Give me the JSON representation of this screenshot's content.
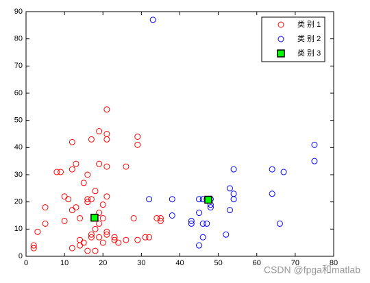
{
  "chart_data": {
    "type": "scatter",
    "xlim": [
      0,
      80
    ],
    "ylim": [
      0,
      90
    ],
    "xticks": [
      0,
      10,
      20,
      30,
      40,
      50,
      60,
      70,
      80
    ],
    "yticks": [
      0,
      10,
      20,
      30,
      40,
      50,
      60,
      70,
      80,
      90
    ],
    "legend": "upper right",
    "watermark": "CSDN @fpga和matlab",
    "series": [
      {
        "name": "类 别 1",
        "color": "#ff0000",
        "marker": "circle",
        "x": [
          2,
          2,
          3,
          5,
          5,
          8,
          9,
          10,
          10,
          11,
          12,
          12,
          12,
          13,
          13,
          12,
          14,
          14,
          14,
          15,
          15,
          16,
          16,
          16,
          16,
          17,
          17,
          17,
          17,
          18,
          18,
          18,
          19,
          19,
          19,
          19,
          19,
          20,
          20,
          20,
          21,
          21,
          21,
          21,
          21,
          21,
          21,
          23,
          23,
          24,
          26,
          26,
          28,
          29,
          29,
          29,
          31,
          32,
          34,
          35,
          35
        ],
        "y": [
          3,
          4,
          9,
          12,
          18,
          31,
          31,
          22,
          13,
          21,
          42,
          32,
          17,
          34,
          18,
          3,
          6,
          4,
          14,
          5,
          27,
          30,
          21,
          20,
          2,
          43,
          21,
          8,
          7,
          24,
          10,
          2,
          46,
          34,
          16,
          12,
          7,
          19,
          14,
          5,
          54,
          45,
          43,
          33,
          22,
          9,
          8,
          7,
          6,
          5,
          33,
          6,
          14,
          44,
          41,
          6,
          7,
          7,
          14,
          13,
          14
        ]
      },
      {
        "name": "类 别 2",
        "color": "#0000ff",
        "marker": "circle",
        "x": [
          33,
          32,
          38,
          38,
          43,
          43,
          45,
          45,
          45,
          46,
          46,
          47,
          46,
          47,
          48,
          48,
          48,
          52,
          53,
          53,
          54,
          54,
          54,
          64,
          64,
          66,
          67,
          75,
          75
        ],
        "y": [
          87,
          21,
          21,
          15,
          13,
          12,
          21,
          16,
          4,
          7,
          12,
          12,
          21,
          21,
          19,
          18,
          21,
          8,
          25,
          17,
          23,
          21,
          32,
          32,
          23,
          12,
          31,
          41,
          35
        ]
      },
      {
        "name": "类 别 3",
        "color": "#00ff00",
        "marker": "square",
        "x": [
          17.8,
          47.4
        ],
        "y": [
          14.2,
          20.8
        ]
      }
    ]
  }
}
